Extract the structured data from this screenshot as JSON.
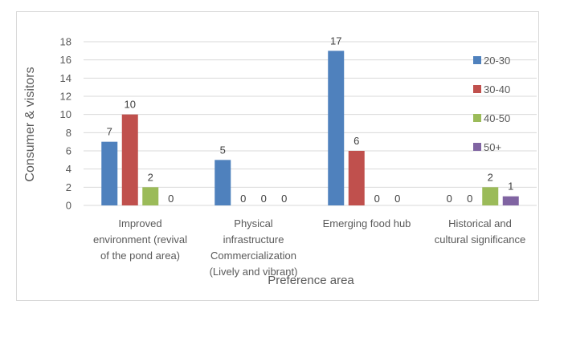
{
  "chart_data": {
    "type": "bar",
    "title": "",
    "xlabel": "Preference area",
    "ylabel": "Consumer & visitors",
    "ylim": [
      0,
      18
    ],
    "yticks": [
      0,
      2,
      4,
      6,
      8,
      10,
      12,
      14,
      16,
      18
    ],
    "grid": true,
    "legend_position": "right",
    "categories": [
      [
        "Improved",
        "environment (revival",
        "of the pond area)"
      ],
      [
        "Physical",
        "infrastructure",
        "Commercialization",
        "(Lively and vibrant)"
      ],
      [
        "Emerging food hub"
      ],
      [
        "Historical and",
        "cultural significance"
      ]
    ],
    "series": [
      {
        "name": "20-30",
        "color": "#4f81bd",
        "values": [
          7,
          5,
          17,
          0
        ]
      },
      {
        "name": "30-40",
        "color": "#c0504d",
        "values": [
          10,
          0,
          6,
          0
        ]
      },
      {
        "name": "40-50",
        "color": "#9bbb59",
        "values": [
          2,
          0,
          0,
          2
        ]
      },
      {
        "name": "50+",
        "color": "#8064a2",
        "values": [
          0,
          0,
          0,
          1
        ]
      }
    ],
    "data_labels": true
  }
}
